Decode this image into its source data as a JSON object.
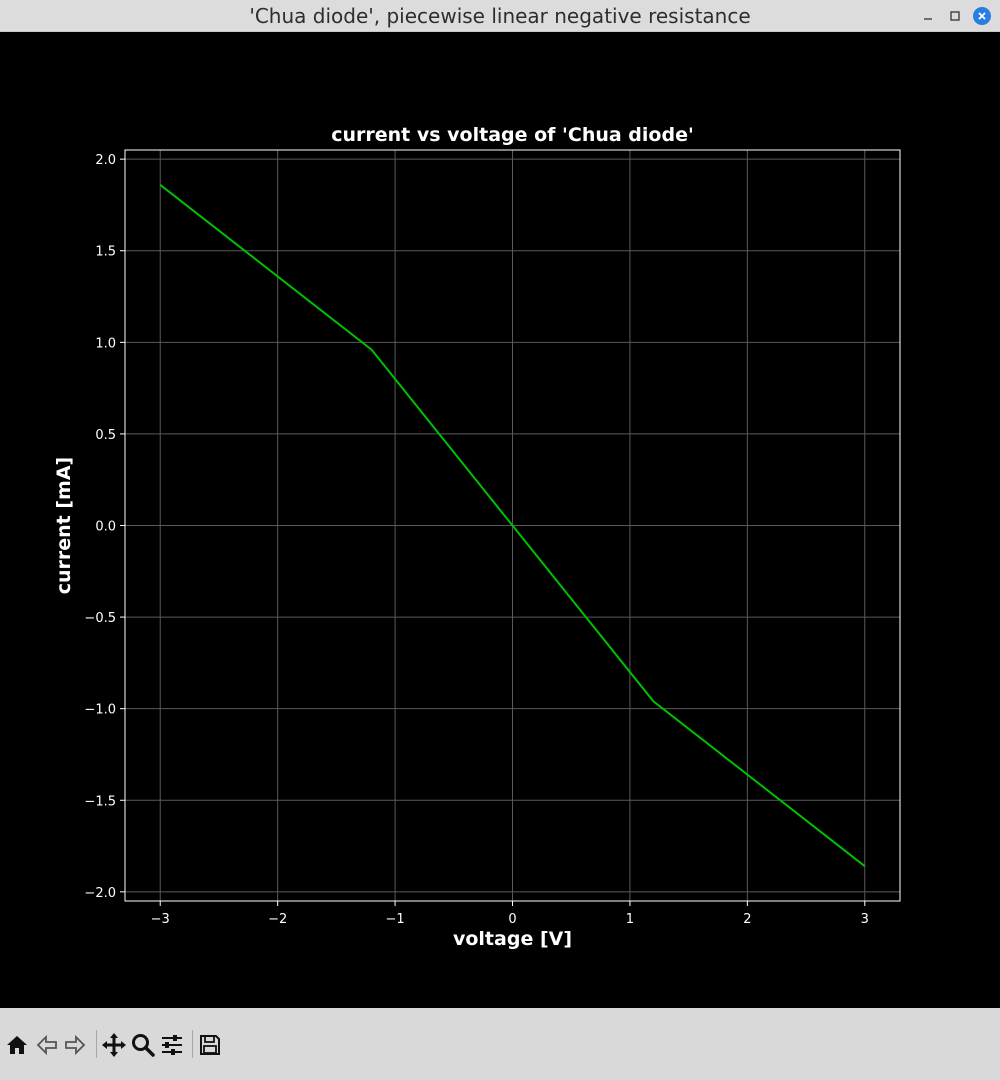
{
  "window": {
    "title": "'Chua diode', piecewise linear negative resistance"
  },
  "colors": {
    "background": "#000000",
    "line": "#00c000",
    "axes": "#ffffff",
    "grid": "#5a5a5a",
    "toolbar": "#d9d9d9"
  },
  "toolbar": {
    "icons": [
      "home-icon",
      "back-arrow-icon",
      "forward-arrow-icon",
      "pan-move-icon",
      "zoom-magnifier-icon",
      "configure-subplots-icon",
      "save-floppy-icon"
    ]
  },
  "chart_data": {
    "type": "line",
    "title": "current vs voltage of 'Chua diode'",
    "xlabel": "voltage [V]",
    "ylabel": "current [mA]",
    "xlim": [
      -3.3,
      3.3
    ],
    "ylim": [
      -2.05,
      2.05
    ],
    "xticks": [
      -3,
      -2,
      -1,
      0,
      1,
      2,
      3
    ],
    "xtick_labels": [
      "−3",
      "−2",
      "−1",
      "0",
      "1",
      "2",
      "3"
    ],
    "yticks": [
      2.0,
      1.5,
      1.0,
      0.5,
      0.0,
      -0.5,
      -1.0,
      -1.5,
      -2.0
    ],
    "ytick_labels": [
      "2.0",
      "1.5",
      "1.0",
      "0.5",
      "0.0",
      "−0.5",
      "−1.0",
      "−1.5",
      "−2.0"
    ],
    "grid": true,
    "series": [
      {
        "x": [
          -3.0,
          -1.2,
          0.0,
          1.2,
          3.0
        ],
        "y": [
          1.86,
          0.96,
          0.0,
          -0.96,
          -1.86
        ]
      }
    ]
  }
}
